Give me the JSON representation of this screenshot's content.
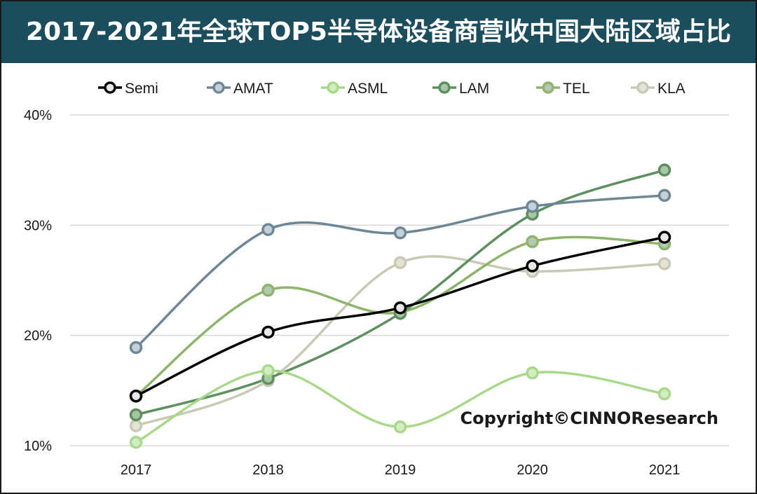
{
  "chart_data": {
    "type": "line",
    "title": "2017-2021年全球TOP5半导体设备商营收中国大陆区域占比",
    "categories": [
      "2017",
      "2018",
      "2019",
      "2020",
      "2021"
    ],
    "ylim": [
      10,
      40
    ],
    "y_ticks": [
      10,
      20,
      30,
      40
    ],
    "y_tick_labels": [
      "10%",
      "20%",
      "30%",
      "40%"
    ],
    "grid": true,
    "legend_position": "top",
    "annotation": "Copyright©CINNOResearch",
    "series": [
      {
        "name": "Semi",
        "color": "#000000",
        "fill": "#e8e8e8",
        "values": [
          14.5,
          20.3,
          22.5,
          26.3,
          28.9
        ]
      },
      {
        "name": "AMAT",
        "color": "#6e8796",
        "fill": "#c3d0d8",
        "values": [
          18.9,
          29.6,
          29.3,
          31.7,
          32.7
        ]
      },
      {
        "name": "ASML",
        "color": "#a8d88a",
        "fill": "#d3edc2",
        "values": [
          10.3,
          16.8,
          11.7,
          16.6,
          14.7
        ]
      },
      {
        "name": "LAM",
        "color": "#5e8f5e",
        "fill": "#a8c6a8",
        "values": [
          12.8,
          16.1,
          22.0,
          31.0,
          35.0
        ]
      },
      {
        "name": "TEL",
        "color": "#8db46a",
        "fill": "#b4c9b3",
        "values": [
          14.5,
          24.1,
          22.1,
          28.5,
          28.3
        ]
      },
      {
        "name": "KLA",
        "color": "#c9c9b5",
        "fill": "#e3e3d6",
        "values": [
          11.8,
          15.9,
          26.6,
          25.8,
          26.5
        ]
      }
    ]
  }
}
